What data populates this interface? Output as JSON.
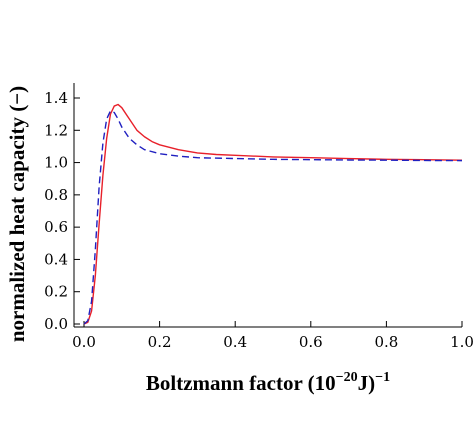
{
  "chart_data": {
    "type": "line",
    "xlabel_main": "Boltzmann factor (10",
    "xlabel_exp": "−20",
    "xlabel_tail": "J)",
    "xlabel_exp2": "−1",
    "ylabel": "normalized heat capacity (−)",
    "xlim": [
      0.0,
      1.0
    ],
    "ylim": [
      0.0,
      1.45
    ],
    "x_ticks": [
      "0.0",
      "0.2",
      "0.4",
      "0.6",
      "0.8",
      "1.0"
    ],
    "x_tick_values": [
      0.0,
      0.2,
      0.4,
      0.6,
      0.8,
      1.0
    ],
    "y_ticks": [
      "0.0",
      "0.2",
      "0.4",
      "0.6",
      "0.8",
      "1.0",
      "1.2",
      "1.4"
    ],
    "y_tick_values": [
      0.0,
      0.2,
      0.4,
      0.6,
      0.8,
      1.0,
      1.2,
      1.4
    ],
    "grid": false,
    "series": [
      {
        "color": "#e8202a",
        "dash": "solid",
        "points": [
          [
            0.0,
            0.0
          ],
          [
            0.01,
            0.01
          ],
          [
            0.02,
            0.08
          ],
          [
            0.03,
            0.3
          ],
          [
            0.04,
            0.62
          ],
          [
            0.05,
            0.92
          ],
          [
            0.06,
            1.15
          ],
          [
            0.07,
            1.3
          ],
          [
            0.08,
            1.35
          ],
          [
            0.09,
            1.36
          ],
          [
            0.1,
            1.34
          ],
          [
            0.12,
            1.27
          ],
          [
            0.14,
            1.2
          ],
          [
            0.16,
            1.16
          ],
          [
            0.18,
            1.13
          ],
          [
            0.2,
            1.11
          ],
          [
            0.25,
            1.08
          ],
          [
            0.3,
            1.06
          ],
          [
            0.35,
            1.05
          ],
          [
            0.4,
            1.045
          ],
          [
            0.5,
            1.035
          ],
          [
            0.6,
            1.03
          ],
          [
            0.7,
            1.025
          ],
          [
            0.8,
            1.02
          ],
          [
            0.9,
            1.018
          ],
          [
            1.0,
            1.015
          ]
        ]
      },
      {
        "color": "#2020c0",
        "dash": "dashed",
        "points": [
          [
            0.0,
            0.0
          ],
          [
            0.01,
            0.02
          ],
          [
            0.02,
            0.14
          ],
          [
            0.03,
            0.46
          ],
          [
            0.04,
            0.85
          ],
          [
            0.05,
            1.12
          ],
          [
            0.06,
            1.27
          ],
          [
            0.07,
            1.32
          ],
          [
            0.08,
            1.31
          ],
          [
            0.09,
            1.27
          ],
          [
            0.1,
            1.22
          ],
          [
            0.12,
            1.15
          ],
          [
            0.14,
            1.11
          ],
          [
            0.16,
            1.08
          ],
          [
            0.2,
            1.055
          ],
          [
            0.25,
            1.04
          ],
          [
            0.3,
            1.03
          ],
          [
            0.4,
            1.025
          ],
          [
            0.5,
            1.02
          ],
          [
            0.6,
            1.018
          ],
          [
            0.7,
            1.016
          ],
          [
            0.8,
            1.015
          ],
          [
            0.9,
            1.013
          ],
          [
            1.0,
            1.012
          ]
        ]
      }
    ]
  }
}
